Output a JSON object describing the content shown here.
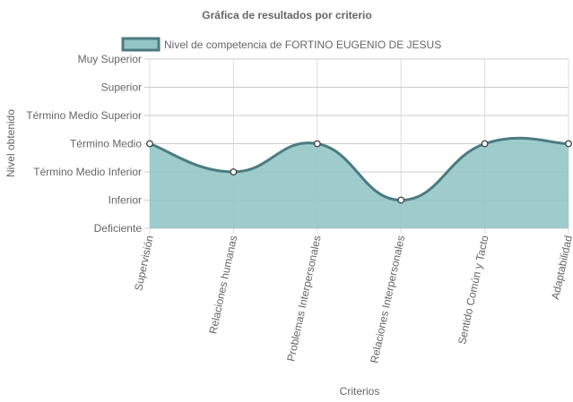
{
  "chart_data": {
    "type": "area",
    "title": "Gráfica de resultados por criterio",
    "xlabel": "Criterios",
    "ylabel": "Nivel obtenido",
    "categories": [
      "Supervisión",
      "Relaciones humanas",
      "Problemas Interpersonales",
      "Relaciones Interpersonales",
      "Sentido Común y Tacto",
      "Adaptabilidad"
    ],
    "y_levels": [
      "Deficiente",
      "Inferior",
      "Término Medio Inferior",
      "Término Medio",
      "Término Medio Superior",
      "Superior",
      "Muy Superior"
    ],
    "series": [
      {
        "name": "Nivel de competencia de FORTINO EUGENIO DE JESUS",
        "values": [
          3,
          2,
          3,
          1,
          3,
          3
        ]
      }
    ],
    "ylim": [
      0,
      6
    ],
    "grid": true,
    "legend": "top",
    "colors": {
      "fill": "#93c5c7",
      "stroke": "#4b7b80",
      "legend_fill": "#93c5c7",
      "legend_stroke": "#4b7b80"
    }
  }
}
